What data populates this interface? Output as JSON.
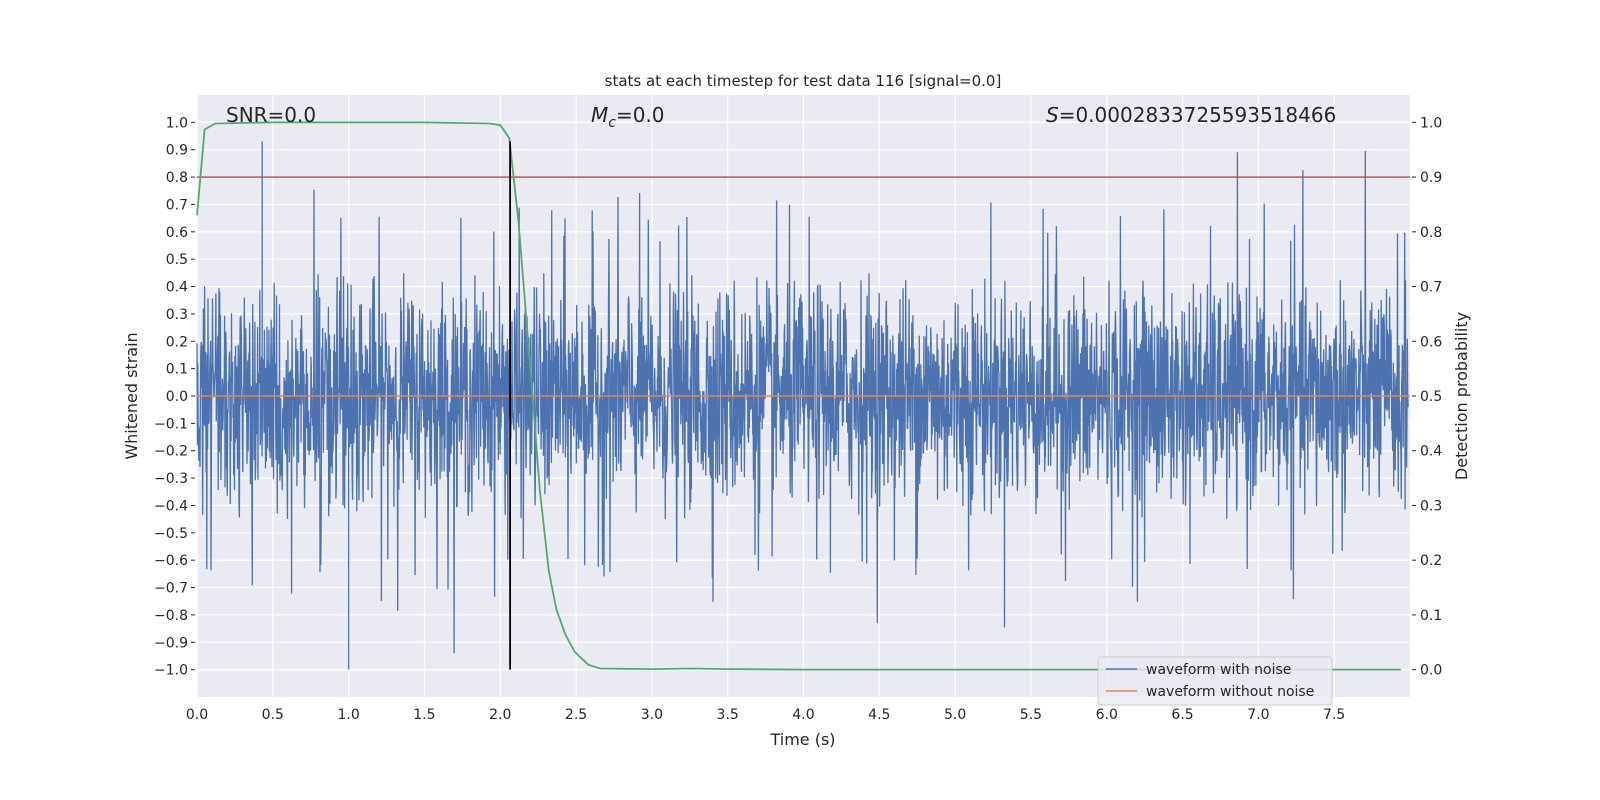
{
  "chart_data": {
    "type": "line",
    "title": "stats at each timestep for test data 116 [signal=0.0]",
    "xlabel": "Time (s)",
    "ylabel": "Whitened strain",
    "y2label": "Detection probability",
    "xlim": [
      0.0,
      8.0
    ],
    "ylim": [
      -1.1,
      1.1
    ],
    "y2lim": [
      -0.05,
      1.05
    ],
    "xticks": [
      "0.0",
      "0.5",
      "1.0",
      "1.5",
      "2.0",
      "2.5",
      "3.0",
      "3.5",
      "4.0",
      "4.5",
      "5.0",
      "5.5",
      "6.0",
      "6.5",
      "7.0",
      "7.5"
    ],
    "yticks": [
      "1.0",
      "0.9",
      "0.8",
      "0.7",
      "0.6",
      "0.5",
      "0.4",
      "0.3",
      "0.2",
      "0.1",
      "0.0",
      "−0.1",
      "−0.2",
      "−0.3",
      "−0.4",
      "−0.5",
      "−0.6",
      "−0.7",
      "−0.8",
      "−0.9",
      "−1.0"
    ],
    "y2ticks": [
      "1.0",
      "0.9",
      "0.8",
      "0.7",
      "0.6",
      "0.5",
      "0.4",
      "0.3",
      "0.2",
      "0.1",
      "0.0"
    ],
    "grid": true,
    "annotations": {
      "snr": "SNR=0.0",
      "mc_sym": "M",
      "mc_sub": "c",
      "mc_val": "=0.0",
      "s_sym": "S",
      "s_val": "=0.0002833725593518466"
    },
    "threshold": 0.9,
    "vline_time": 2.065,
    "series": [
      {
        "name": "waveform with noise",
        "color": "#4c72b0",
        "axis": "left",
        "kind": "whitened noise, range -1.0 to 0.93"
      },
      {
        "name": "waveform without noise",
        "color": "#dd8452",
        "axis": "left",
        "value": 0.0
      },
      {
        "name": "detection probability",
        "color": "#55a868",
        "axis": "right",
        "x": [
          0.0,
          0.05,
          0.12,
          0.5,
          1.0,
          1.5,
          1.93,
          2.0,
          2.06,
          2.12,
          2.2,
          2.26,
          2.32,
          2.37,
          2.43,
          2.49,
          2.58,
          2.66,
          3.0,
          3.25,
          3.5,
          4.0,
          5.0,
          6.0,
          7.0,
          7.94
        ],
        "y": [
          0.83,
          0.987,
          0.998,
          1.0,
          1.0,
          1.0,
          0.998,
          0.995,
          0.971,
          0.82,
          0.546,
          0.33,
          0.18,
          0.11,
          0.064,
          0.033,
          0.009,
          0.002,
          0.001,
          0.002,
          0.001,
          0.0,
          0.0,
          0.0,
          0.0,
          0.0
        ]
      }
    ],
    "legend": {
      "placement": "lower-right",
      "entries": [
        "waveform with noise",
        "waveform without noise"
      ]
    },
    "colors": {
      "background": "#eaeaf2",
      "threshold": "#c44e52",
      "vline": "#000000"
    }
  }
}
